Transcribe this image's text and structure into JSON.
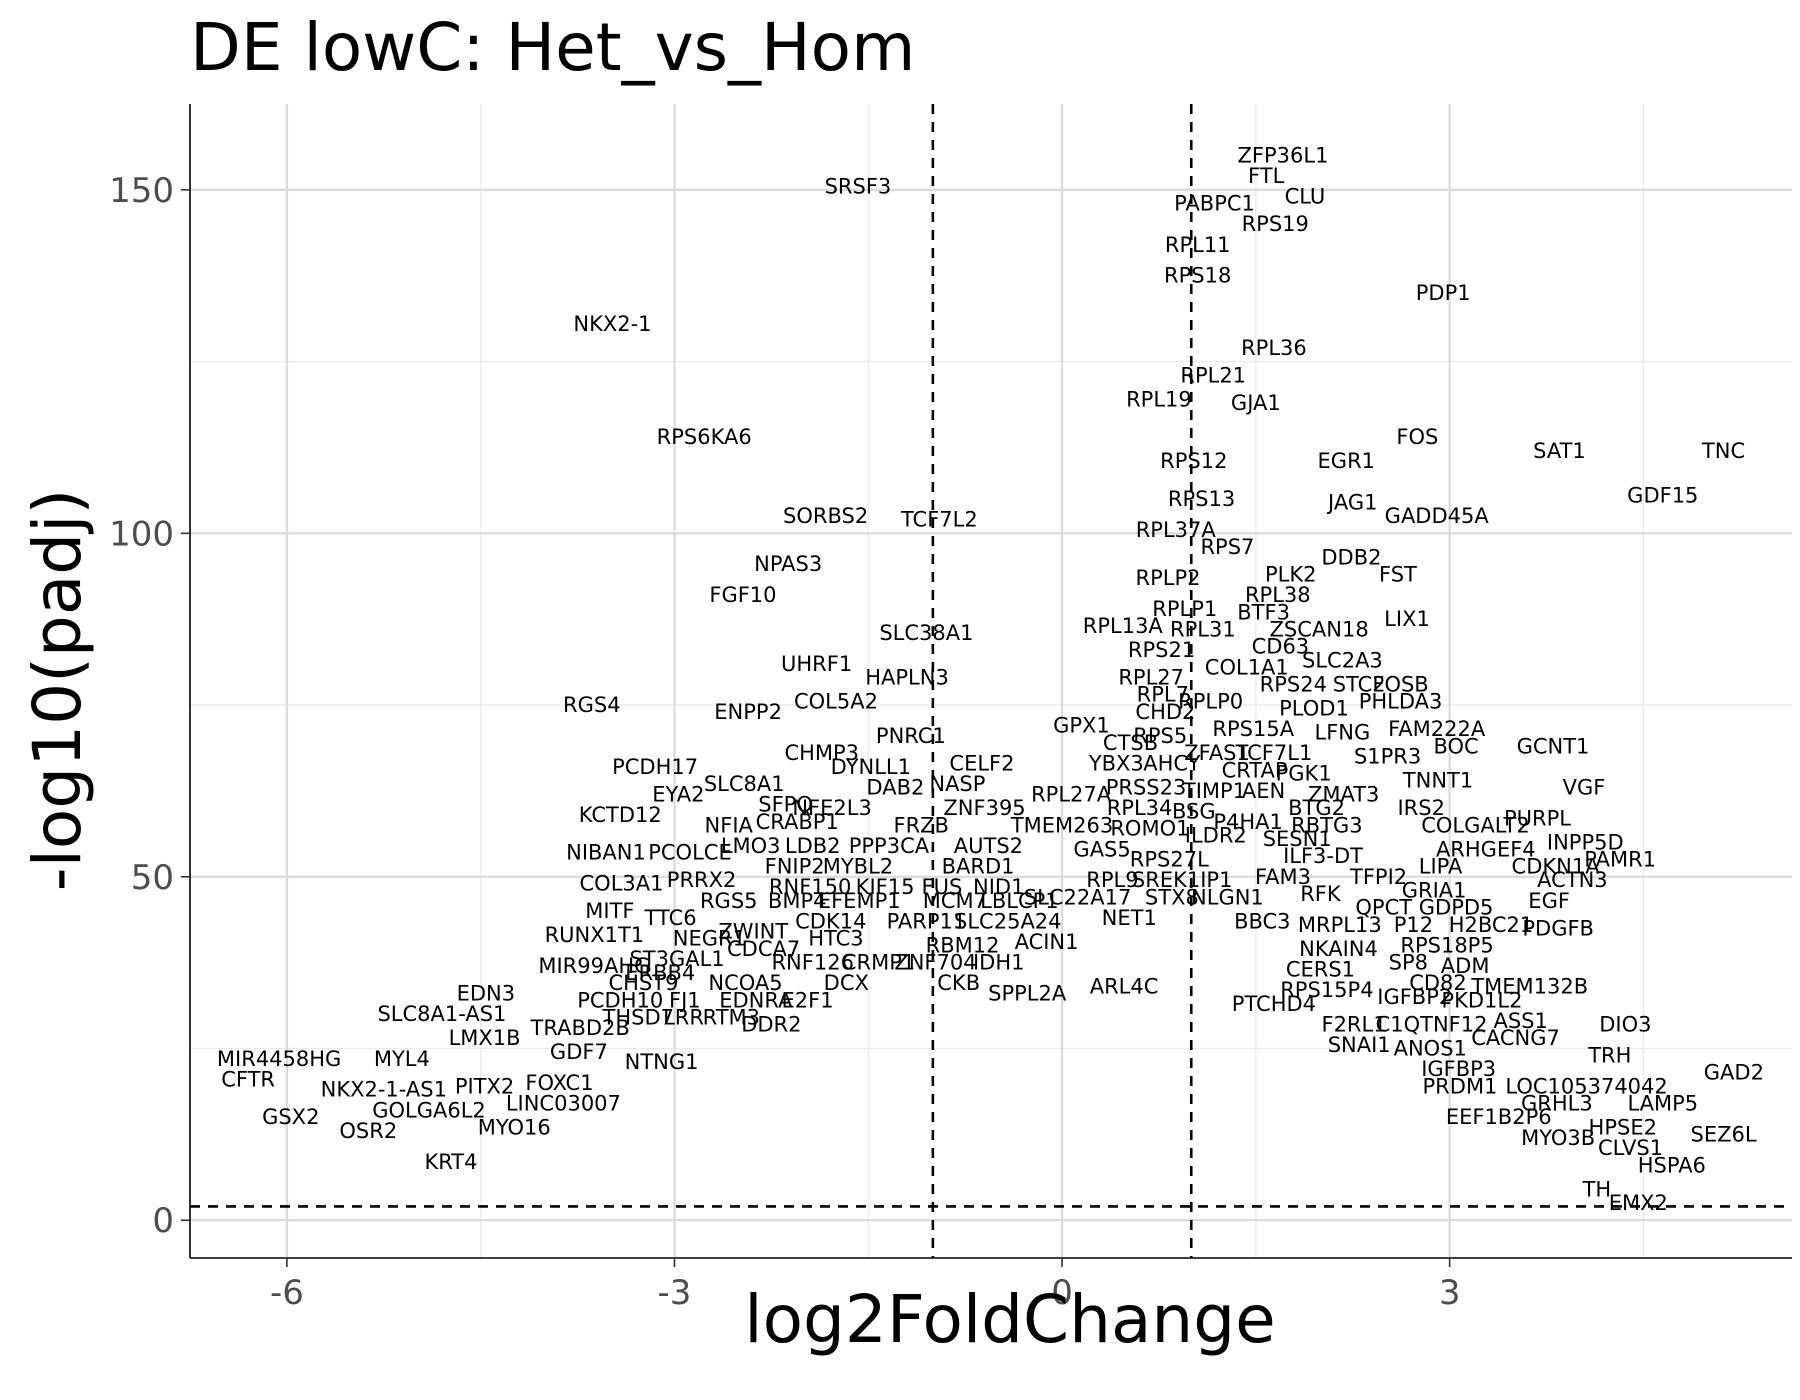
{
  "chart_data": {
    "type": "scatter",
    "title": "DE lowC: Het_vs_Hom",
    "xlabel": "log2FoldChange",
    "ylabel": "-log10(padj)",
    "xlim": [
      -6.75,
      5.65
    ],
    "ylim": [
      -5.5,
      162.5
    ],
    "x_ticks": [
      -6,
      -3,
      0,
      3
    ],
    "x_tick_labels": [
      "-6",
      "-3",
      "0",
      "3"
    ],
    "y_ticks": [
      0,
      50,
      100,
      150
    ],
    "y_tick_labels": [
      "0",
      "50",
      "100",
      "150"
    ],
    "grid": true,
    "legend": "none",
    "thresholds": {
      "log2fc": [
        -1,
        1
      ],
      "padj_line": 2
    },
    "points": [
      {
        "label": "SRSF3",
        "x": -1.58,
        "y": 150.5
      },
      {
        "label": "ZFP36L1",
        "x": 1.71,
        "y": 155
      },
      {
        "label": "FTL",
        "x": 1.58,
        "y": 152
      },
      {
        "label": "CLU",
        "x": 1.88,
        "y": 149
      },
      {
        "label": "PABPC1",
        "x": 1.18,
        "y": 148
      },
      {
        "label": "RPS19",
        "x": 1.65,
        "y": 145
      },
      {
        "label": "RPL11",
        "x": 1.05,
        "y": 142
      },
      {
        "label": "RPS18",
        "x": 1.05,
        "y": 137.5
      },
      {
        "label": "PDP1",
        "x": 2.95,
        "y": 135
      },
      {
        "label": "NKX2-1",
        "x": -3.48,
        "y": 130.5
      },
      {
        "label": "RPL36",
        "x": 1.64,
        "y": 127
      },
      {
        "label": "RPL21",
        "x": 1.17,
        "y": 123
      },
      {
        "label": "RPL19",
        "x": 0.75,
        "y": 119.5
      },
      {
        "label": "GJA1",
        "x": 1.5,
        "y": 119
      },
      {
        "label": "RPS6KA6",
        "x": -2.77,
        "y": 114
      },
      {
        "label": "FOS",
        "x": 2.75,
        "y": 114
      },
      {
        "label": "SAT1",
        "x": 3.85,
        "y": 112
      },
      {
        "label": "TNC",
        "x": 5.12,
        "y": 112
      },
      {
        "label": "RPS12",
        "x": 1.02,
        "y": 110.5
      },
      {
        "label": "EGR1",
        "x": 2.2,
        "y": 110.5
      },
      {
        "label": "GDF15",
        "x": 4.65,
        "y": 105.5
      },
      {
        "label": "RPS13",
        "x": 1.08,
        "y": 105
      },
      {
        "label": "JAG1",
        "x": 2.25,
        "y": 104.5
      },
      {
        "label": "SORBS2",
        "x": -1.83,
        "y": 102.5
      },
      {
        "label": "TCF7L2",
        "x": -0.95,
        "y": 102
      },
      {
        "label": "GADD45A",
        "x": 2.9,
        "y": 102.5
      },
      {
        "label": "RPL37A",
        "x": 0.88,
        "y": 100.5
      },
      {
        "label": "RPS7",
        "x": 1.28,
        "y": 98
      },
      {
        "label": "DDB2",
        "x": 2.24,
        "y": 96.5
      },
      {
        "label": "NPAS3",
        "x": -2.12,
        "y": 95.5
      },
      {
        "label": "PLK2",
        "x": 1.77,
        "y": 94
      },
      {
        "label": "FST",
        "x": 2.6,
        "y": 94
      },
      {
        "label": "RPLP2",
        "x": 0.82,
        "y": 93.5
      },
      {
        "label": "RPL38",
        "x": 1.67,
        "y": 91
      },
      {
        "label": "FGF10",
        "x": -2.47,
        "y": 91
      },
      {
        "label": "RPLP1",
        "x": 0.95,
        "y": 89
      },
      {
        "label": "BTF3",
        "x": 1.56,
        "y": 88.5
      },
      {
        "label": "LIX1",
        "x": 2.67,
        "y": 87.5
      },
      {
        "label": "RPL13A",
        "x": 0.47,
        "y": 86.5
      },
      {
        "label": "ZSCAN18",
        "x": 1.99,
        "y": 86
      },
      {
        "label": "RPL31",
        "x": 1.09,
        "y": 86
      },
      {
        "label": "SLC38A1",
        "x": -1.05,
        "y": 85.5
      },
      {
        "label": "CD63",
        "x": 1.69,
        "y": 83.5
      },
      {
        "label": "RPS21",
        "x": 0.77,
        "y": 83
      },
      {
        "label": "SLC2A3",
        "x": 2.17,
        "y": 81.5
      },
      {
        "label": "UHRF1",
        "x": -1.9,
        "y": 81
      },
      {
        "label": "COL1A1",
        "x": 1.43,
        "y": 80.5
      },
      {
        "label": "RPL27",
        "x": 0.69,
        "y": 79
      },
      {
        "label": "HAPLN3",
        "x": -1.2,
        "y": 79
      },
      {
        "label": "RPS24",
        "x": 1.79,
        "y": 78
      },
      {
        "label": "STC2",
        "x": 2.3,
        "y": 78
      },
      {
        "label": "FOSB",
        "x": 2.62,
        "y": 78
      },
      {
        "label": "RPL7",
        "x": 0.78,
        "y": 76.5
      },
      {
        "label": "RGS4",
        "x": -3.64,
        "y": 75
      },
      {
        "label": "COL5A2",
        "x": -1.75,
        "y": 75.5
      },
      {
        "label": "PHLDA3",
        "x": 2.62,
        "y": 75.5
      },
      {
        "label": "RPLP0",
        "x": 1.15,
        "y": 75.5
      },
      {
        "label": "PLOD1",
        "x": 1.95,
        "y": 74.5
      },
      {
        "label": "CHD2",
        "x": 0.8,
        "y": 74
      },
      {
        "label": "ENPP2",
        "x": -2.43,
        "y": 74
      },
      {
        "label": "GPX1",
        "x": 0.15,
        "y": 72
      },
      {
        "label": "FAM222A",
        "x": 2.9,
        "y": 71.5
      },
      {
        "label": "RPS15A",
        "x": 1.48,
        "y": 71.5
      },
      {
        "label": "LFNG",
        "x": 2.17,
        "y": 71
      },
      {
        "label": "RPS5",
        "x": 0.76,
        "y": 70.5
      },
      {
        "label": "PNRC1",
        "x": -1.17,
        "y": 70.5
      },
      {
        "label": "CTSB",
        "x": 0.53,
        "y": 69.5
      },
      {
        "label": "BOC",
        "x": 3.05,
        "y": 69
      },
      {
        "label": "GCNT1",
        "x": 3.8,
        "y": 69
      },
      {
        "label": "ZFAS1",
        "x": 1.2,
        "y": 68
      },
      {
        "label": "TCF7L1",
        "x": 1.64,
        "y": 68
      },
      {
        "label": "CHMP3",
        "x": -1.86,
        "y": 68
      },
      {
        "label": "S1PR3",
        "x": 2.52,
        "y": 67.5
      },
      {
        "label": "YBX3",
        "x": 0.42,
        "y": 66.5
      },
      {
        "label": "AHCY",
        "x": 0.85,
        "y": 66.5
      },
      {
        "label": "DYNLL1",
        "x": -1.48,
        "y": 66
      },
      {
        "label": "CELF2",
        "x": -0.62,
        "y": 66.5
      },
      {
        "label": "PCDH17",
        "x": -3.15,
        "y": 66
      },
      {
        "label": "CRTAP",
        "x": 1.49,
        "y": 65.5
      },
      {
        "label": "PGK1",
        "x": 1.87,
        "y": 65
      },
      {
        "label": "TNNT1",
        "x": 2.91,
        "y": 64
      },
      {
        "label": "SLC8A1",
        "x": -2.46,
        "y": 63.5
      },
      {
        "label": "NASP",
        "x": -0.81,
        "y": 63.5
      },
      {
        "label": "DAB2",
        "x": -1.29,
        "y": 63
      },
      {
        "label": "VGF",
        "x": 4.04,
        "y": 63
      },
      {
        "label": "EYA2",
        "x": -2.97,
        "y": 62
      },
      {
        "label": "PRSS23",
        "x": 0.65,
        "y": 63
      },
      {
        "label": "TIMP1",
        "x": 1.18,
        "y": 62.5
      },
      {
        "label": "AEN",
        "x": 1.56,
        "y": 62.5
      },
      {
        "label": "ZMAT3",
        "x": 2.18,
        "y": 62
      },
      {
        "label": "RPL27A",
        "x": 0.07,
        "y": 62
      },
      {
        "label": "SFPQ",
        "x": -2.14,
        "y": 60.5
      },
      {
        "label": "NFE2L3",
        "x": -1.78,
        "y": 60
      },
      {
        "label": "ZNF395",
        "x": -0.6,
        "y": 60
      },
      {
        "label": "IRS2",
        "x": 2.78,
        "y": 60
      },
      {
        "label": "RPL34",
        "x": 0.6,
        "y": 60
      },
      {
        "label": "BSG",
        "x": 1.02,
        "y": 59.5
      },
      {
        "label": "BTG2",
        "x": 1.97,
        "y": 60
      },
      {
        "label": "KCTD12",
        "x": -3.42,
        "y": 59
      },
      {
        "label": "PURPL",
        "x": 3.68,
        "y": 58.5
      },
      {
        "label": "P4HA1",
        "x": 1.44,
        "y": 58
      },
      {
        "label": "RBTG3",
        "x": 2.05,
        "y": 57.5
      },
      {
        "label": "COLGALT2",
        "x": 3.2,
        "y": 57.5
      },
      {
        "label": "NFIA",
        "x": -2.58,
        "y": 57.5
      },
      {
        "label": "CRABP1",
        "x": -2.05,
        "y": 58
      },
      {
        "label": "FRZB",
        "x": -1.09,
        "y": 57.5
      },
      {
        "label": "TMEM263",
        "x": 0.0,
        "y": 57.5
      },
      {
        "label": "ROMO1",
        "x": 0.68,
        "y": 57
      },
      {
        "label": "ILDR2",
        "x": 1.19,
        "y": 56
      },
      {
        "label": "SESN1",
        "x": 1.82,
        "y": 55.5
      },
      {
        "label": "INPP5D",
        "x": 4.05,
        "y": 55
      },
      {
        "label": "LMO3",
        "x": -2.41,
        "y": 54.5
      },
      {
        "label": "LDB2",
        "x": -1.93,
        "y": 54.5
      },
      {
        "label": "PPP3CA",
        "x": -1.34,
        "y": 54.5
      },
      {
        "label": "AUTS2",
        "x": -0.57,
        "y": 54.5
      },
      {
        "label": "GAS5",
        "x": 0.31,
        "y": 54
      },
      {
        "label": "ARHGEF4",
        "x": 3.28,
        "y": 54
      },
      {
        "label": "NIBAN1",
        "x": -3.53,
        "y": 53.5
      },
      {
        "label": "PCOLCE",
        "x": -2.88,
        "y": 53.5
      },
      {
        "label": "ILF3-DT",
        "x": 2.02,
        "y": 53
      },
      {
        "label": "RPS27L",
        "x": 0.83,
        "y": 52.5
      },
      {
        "label": "PAMR1",
        "x": 4.32,
        "y": 52.5
      },
      {
        "label": "FNIP2",
        "x": -2.07,
        "y": 51.5
      },
      {
        "label": "MYBL2",
        "x": -1.58,
        "y": 51.5
      },
      {
        "label": "BARD1",
        "x": -0.65,
        "y": 51.5
      },
      {
        "label": "LIPA",
        "x": 2.93,
        "y": 51.5
      },
      {
        "label": "CDKN1A",
        "x": 3.82,
        "y": 51.5
      },
      {
        "label": "COL3A1",
        "x": -3.41,
        "y": 49
      },
      {
        "label": "PRRX2",
        "x": -2.79,
        "y": 49.5
      },
      {
        "label": "RNF150",
        "x": -1.95,
        "y": 48.5
      },
      {
        "label": "KIF15",
        "x": -1.37,
        "y": 48.5
      },
      {
        "label": "FUS",
        "x": -0.93,
        "y": 48.5
      },
      {
        "label": "NID1",
        "x": -0.49,
        "y": 48.5
      },
      {
        "label": "RPL9",
        "x": 0.39,
        "y": 49.5
      },
      {
        "label": "SREK1IP1",
        "x": 0.93,
        "y": 49.5
      },
      {
        "label": "FAM3",
        "x": 1.71,
        "y": 50
      },
      {
        "label": "TFPI2",
        "x": 2.45,
        "y": 50
      },
      {
        "label": "ACTN3",
        "x": 3.95,
        "y": 49.5
      },
      {
        "label": "GRIA1",
        "x": 2.88,
        "y": 48
      },
      {
        "label": "RGS5",
        "x": -2.58,
        "y": 46.5
      },
      {
        "label": "BMP4",
        "x": -2.05,
        "y": 46.5
      },
      {
        "label": "EFEMP1",
        "x": -1.57,
        "y": 46.5
      },
      {
        "label": "MCM7",
        "x": -0.83,
        "y": 46.5
      },
      {
        "label": "SLC22A17",
        "x": 0.12,
        "y": 47
      },
      {
        "label": "STX8",
        "x": 0.85,
        "y": 47
      },
      {
        "label": "NLGN1",
        "x": 1.28,
        "y": 47
      },
      {
        "label": "RFK",
        "x": 2.0,
        "y": 47.5
      },
      {
        "label": "QPCT",
        "x": 2.49,
        "y": 45.5
      },
      {
        "label": "GDPD5",
        "x": 3.05,
        "y": 45.5
      },
      {
        "label": "EGF",
        "x": 3.77,
        "y": 46.5
      },
      {
        "label": "MITF",
        "x": -3.5,
        "y": 45
      },
      {
        "label": "TTC6",
        "x": -3.03,
        "y": 44
      },
      {
        "label": "NET1",
        "x": 0.52,
        "y": 44
      },
      {
        "label": "BBC3",
        "x": 1.55,
        "y": 43.5
      },
      {
        "label": "CDK14",
        "x": -1.79,
        "y": 43.5
      },
      {
        "label": "PARP11",
        "x": -1.05,
        "y": 43.5
      },
      {
        "label": "LBLCP1",
        "x": -0.33,
        "y": 46.5
      },
      {
        "label": "SLC25A24",
        "x": -0.42,
        "y": 43.5
      },
      {
        "label": "MRPL13",
        "x": 2.15,
        "y": 43
      },
      {
        "label": "P12",
        "x": 2.72,
        "y": 43
      },
      {
        "label": "H2BC21",
        "x": 3.32,
        "y": 43
      },
      {
        "label": "PDGFB",
        "x": 3.84,
        "y": 42.5
      },
      {
        "label": "RUNX1T1",
        "x": -3.62,
        "y": 41.5
      },
      {
        "label": "NEGR1",
        "x": -2.73,
        "y": 41
      },
      {
        "label": "ZWINT",
        "x": -2.39,
        "y": 42
      },
      {
        "label": "HTC3",
        "x": -1.75,
        "y": 41
      },
      {
        "label": "ACIN1",
        "x": -0.12,
        "y": 40.5
      },
      {
        "label": "CDCA7",
        "x": -2.31,
        "y": 39.5
      },
      {
        "label": "RBM12",
        "x": -0.77,
        "y": 40
      },
      {
        "label": "NKAIN4",
        "x": 2.14,
        "y": 39.5
      },
      {
        "label": "RPS18P5",
        "x": 2.98,
        "y": 40
      },
      {
        "label": "MIR99AHG",
        "x": -3.62,
        "y": 37
      },
      {
        "label": "ST3GAL1",
        "x": -2.98,
        "y": 38
      },
      {
        "label": "RNF126",
        "CRMP1": null,
        "x": -1.93,
        "y": 37.5
      },
      {
        "label": "CRMP1",
        "x": -1.42,
        "y": 37.5
      },
      {
        "label": "ZNF704",
        "x": -0.98,
        "y": 37.5
      },
      {
        "label": "IDH1",
        "x": -0.49,
        "y": 37.5
      },
      {
        "label": "ADM",
        "x": 3.12,
        "y": 37
      },
      {
        "label": "CERS1",
        "x": 2.0,
        "y": 36.5
      },
      {
        "label": "SP8",
        "x": 2.68,
        "y": 37.5
      },
      {
        "label": "CHST9",
        "x": -3.24,
        "y": 34.5
      },
      {
        "label": "ERBB4",
        "x": -3.11,
        "y": 36
      },
      {
        "label": "NCOA5",
        "x": -2.45,
        "y": 34.5
      },
      {
        "label": "DCX",
        "x": -1.67,
        "y": 34.5
      },
      {
        "label": "CKB",
        "x": -0.8,
        "y": 34.5
      },
      {
        "label": "CD82",
        "x": 2.91,
        "y": 34.5
      },
      {
        "label": "TMEM132B",
        "x": 3.62,
        "y": 34
      },
      {
        "label": "ARL4C",
        "x": 0.48,
        "y": 34
      },
      {
        "label": "EDN3",
        "x": -4.46,
        "y": 33
      },
      {
        "label": "RPS15P4",
        "x": 2.05,
        "y": 33.5
      },
      {
        "label": "SPPL2A",
        "x": -0.27,
        "y": 33
      },
      {
        "label": "PCDH10",
        "x": -3.42,
        "y": 32
      },
      {
        "label": "FJ1",
        "x": -2.92,
        "y": 32
      },
      {
        "label": "EDNRA",
        "x": -2.37,
        "y": 32
      },
      {
        "label": "E2F1",
        "x": -1.97,
        "y": 32
      },
      {
        "label": "IGFBP2",
        "x": 2.73,
        "y": 32.5
      },
      {
        "label": "PKD1L2",
        "x": 3.25,
        "y": 32
      },
      {
        "label": "PTCHD4",
        "x": 1.64,
        "y": 31.5
      },
      {
        "label": "SLC8A1-AS1",
        "x": -4.8,
        "y": 30
      },
      {
        "label": "THSD7",
        "x": -3.28,
        "y": 29.5
      },
      {
        "label": "LRR",
        "x": -2.93,
        "y": 29.5
      },
      {
        "label": "RTM3",
        "x": -2.56,
        "y": 29.5
      },
      {
        "label": "TRABD2B",
        "x": -3.73,
        "y": 28
      },
      {
        "label": "DDR2",
        "x": -2.25,
        "y": 28.5
      },
      {
        "label": "F2RL1",
        "x": 2.26,
        "y": 28.5
      },
      {
        "label": "C1QTNF12",
        "x": 2.86,
        "y": 28.5
      },
      {
        "label": "ASS1",
        "x": 3.55,
        "y": 29
      },
      {
        "label": "DIO3",
        "x": 4.36,
        "y": 28.5
      },
      {
        "label": "LMX1B",
        "x": -4.47,
        "y": 26.5
      },
      {
        "label": "CACNG7",
        "x": 3.51,
        "y": 26.5
      },
      {
        "label": "SNAI1",
        "x": 2.3,
        "y": 25.5
      },
      {
        "label": "ANOS1",
        "x": 2.85,
        "y": 25
      },
      {
        "label": "GDF7",
        "x": -3.74,
        "y": 24.5
      },
      {
        "label": "NTNG1",
        "x": -3.1,
        "y": 23
      },
      {
        "label": "TRH",
        "x": 4.24,
        "y": 24
      },
      {
        "label": "MIR4458HG",
        "x": -6.06,
        "y": 23.5
      },
      {
        "label": "MYL4",
        "x": -5.11,
        "y": 23.5
      },
      {
        "label": "IGFBP3",
        "x": 3.07,
        "y": 22
      },
      {
        "label": "GAD2",
        "x": 5.2,
        "y": 21.5
      },
      {
        "label": "CFTR",
        "x": -6.3,
        "y": 20.5
      },
      {
        "label": "FOXC1",
        "x": -3.89,
        "y": 20
      },
      {
        "label": "LOC105374042",
        "x": 4.06,
        "y": 19.5
      },
      {
        "label": "NKX2-1-AS1",
        "x": -5.25,
        "y": 19
      },
      {
        "label": "PITX2",
        "x": -4.47,
        "y": 19.5
      },
      {
        "label": "PRDM1",
        "x": 3.08,
        "y": 19.5
      },
      {
        "label": "LINC03007",
        "x": -3.86,
        "y": 17
      },
      {
        "label": "GRHL3",
        "x": 3.83,
        "y": 17
      },
      {
        "label": "LAMP5",
        "x": 4.65,
        "y": 17
      },
      {
        "label": "GOLGA6L2",
        "x": -4.9,
        "y": 16
      },
      {
        "label": "GSX2",
        "x": -5.97,
        "y": 15
      },
      {
        "label": "EEF1B2P6",
        "x": 3.38,
        "y": 15
      },
      {
        "label": "OSR2",
        "x": -5.37,
        "y": 13
      },
      {
        "label": "MYO16",
        "x": -4.24,
        "y": 13.5
      },
      {
        "label": "HPSE2",
        "x": 4.34,
        "y": 13.5
      },
      {
        "label": "SEZ6L",
        "x": 5.12,
        "y": 12.5
      },
      {
        "label": "MYO3B",
        "x": 3.84,
        "y": 12
      },
      {
        "label": "CLVS1",
        "x": 4.4,
        "y": 10.5
      },
      {
        "label": "KRT4",
        "x": -4.73,
        "y": 8.5
      },
      {
        "label": "HSPA6",
        "x": 4.72,
        "y": 8
      },
      {
        "label": "TH",
        "x": 4.14,
        "y": 4.5
      },
      {
        "label": "EMX2",
        "x": 4.46,
        "y": 2.5
      }
    ]
  }
}
